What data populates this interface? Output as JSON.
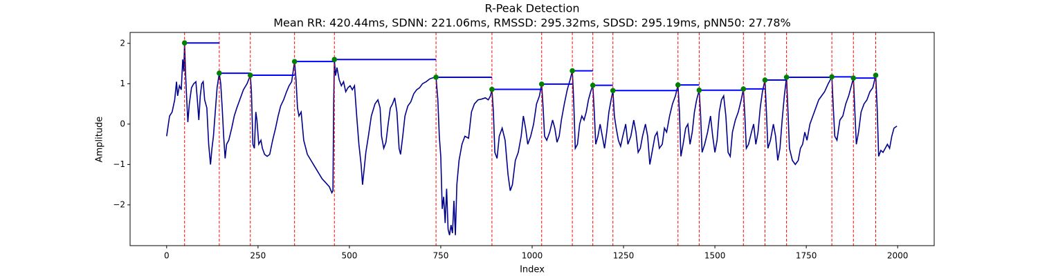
{
  "chart_data": {
    "type": "line",
    "title": "R-Peak Detection",
    "subtitle": "Mean RR: 420.44ms, SDNN: 221.06ms, RMSSD: 295.32ms, SDSD: 295.19ms, pNN50: 27.78%",
    "x_label": "Index",
    "y_label": "Amplitude",
    "xlim": [
      -100,
      2100
    ],
    "ylim": [
      -3.01,
      2.27
    ],
    "xticks": [
      0,
      250,
      500,
      750,
      1000,
      1250,
      1500,
      1750,
      2000
    ],
    "yticks": [
      {
        "value": -2,
        "label": "−2"
      },
      {
        "value": -1,
        "label": "−1"
      },
      0,
      1,
      2
    ],
    "signal": {
      "color": "#00008b",
      "x": [
        0,
        8,
        15,
        22,
        27,
        30,
        35,
        40,
        44,
        47,
        49,
        52,
        55,
        58,
        62,
        68,
        74,
        80,
        84,
        88,
        92,
        96,
        100,
        104,
        110,
        115,
        120,
        124,
        128,
        133,
        138,
        144,
        148,
        152,
        156,
        160,
        164,
        170,
        178,
        185,
        192,
        200,
        210,
        220,
        229,
        232,
        236,
        240,
        244,
        247,
        252,
        258,
        262,
        268,
        275,
        282,
        290,
        298,
        305,
        312,
        320,
        328,
        335,
        342,
        350,
        354,
        358,
        362,
        368,
        375,
        385,
        395,
        405,
        415,
        425,
        435,
        445,
        452,
        455,
        457,
        459,
        462,
        466,
        472,
        478,
        484,
        490,
        496,
        502,
        508,
        514,
        520,
        526,
        532,
        536,
        540,
        545,
        552,
        560,
        570,
        578,
        584,
        588,
        594,
        600,
        606,
        612,
        618,
        624,
        630,
        636,
        640,
        646,
        652,
        660,
        668,
        676,
        684,
        692,
        700,
        710,
        720,
        730,
        737,
        742,
        746,
        750,
        754,
        758,
        762,
        766,
        770,
        774,
        778,
        782,
        786,
        790,
        794,
        800,
        808,
        816,
        826,
        834,
        842,
        852,
        862,
        872,
        880,
        886,
        890,
        894,
        898,
        904,
        910,
        918,
        926,
        934,
        940,
        946,
        954,
        962,
        970,
        976,
        982,
        988,
        996,
        1004,
        1012,
        1020,
        1026,
        1030,
        1034,
        1040,
        1048,
        1056,
        1062,
        1068,
        1074,
        1080,
        1088,
        1096,
        1104,
        1110,
        1114,
        1118,
        1124,
        1130,
        1136,
        1142,
        1148,
        1154,
        1160,
        1166,
        1170,
        1174,
        1180,
        1186,
        1192,
        1198,
        1204,
        1210,
        1216,
        1221,
        1225,
        1230,
        1236,
        1242,
        1248,
        1256,
        1262,
        1270,
        1278,
        1284,
        1290,
        1296,
        1302,
        1310,
        1316,
        1322,
        1328,
        1336,
        1342,
        1348,
        1356,
        1362,
        1368,
        1376,
        1384,
        1392,
        1399,
        1403,
        1407,
        1413,
        1420,
        1426,
        1432,
        1438,
        1444,
        1450,
        1457,
        1461,
        1465,
        1472,
        1480,
        1488,
        1494,
        1500,
        1506,
        1512,
        1518,
        1524,
        1530,
        1536,
        1542,
        1548,
        1556,
        1564,
        1572,
        1578,
        1582,
        1586,
        1592,
        1600,
        1606,
        1612,
        1618,
        1624,
        1630,
        1637,
        1641,
        1645,
        1652,
        1660,
        1666,
        1672,
        1678,
        1684,
        1690,
        1696,
        1700,
        1704,
        1712,
        1720,
        1728,
        1734,
        1740,
        1746,
        1752,
        1760,
        1768,
        1776,
        1784,
        1792,
        1800,
        1810,
        1820,
        1824,
        1828,
        1834,
        1842,
        1850,
        1858,
        1866,
        1872,
        1879,
        1883,
        1887,
        1893,
        1900,
        1908,
        1916,
        1924,
        1932,
        1940,
        1944,
        1948,
        1954,
        1960,
        1966,
        1972,
        1978,
        1984,
        1990,
        1998
      ],
      "values": [
        -0.3,
        0.2,
        0.3,
        0.6,
        1.05,
        0.7,
        0.95,
        0.85,
        1.6,
        1.3,
        2.01,
        1.2,
        0.6,
        0.05,
        0.5,
        0.9,
        1.0,
        1.05,
        0.6,
        0.1,
        0.7,
        1.0,
        1.05,
        0.6,
        0.4,
        -0.5,
        -1.0,
        -0.6,
        -0.3,
        0.3,
        0.9,
        1.26,
        1.0,
        0.4,
        -0.3,
        -0.85,
        -0.5,
        -0.4,
        -0.1,
        0.2,
        0.4,
        0.6,
        0.85,
        1.0,
        1.21,
        0.8,
        -0.5,
        -0.6,
        0.3,
        0.1,
        -0.5,
        -0.4,
        -0.6,
        -0.75,
        -0.8,
        -0.75,
        -0.4,
        -0.1,
        0.2,
        0.45,
        0.6,
        0.8,
        0.95,
        1.05,
        1.55,
        1.1,
        0.4,
        0.2,
        0.3,
        -0.4,
        -0.75,
        -0.9,
        -1.05,
        -1.2,
        -1.35,
        -1.45,
        -1.55,
        -1.7,
        -1.65,
        0.5,
        1.6,
        1.2,
        1.4,
        1.1,
        0.95,
        1.05,
        0.8,
        0.9,
        0.95,
        0.85,
        0.95,
        0.2,
        -0.5,
        -1.0,
        -1.5,
        -1.15,
        -0.7,
        -0.3,
        0.2,
        0.5,
        0.6,
        0.4,
        -0.3,
        -0.6,
        -0.45,
        0,
        0.4,
        0.5,
        0.65,
        0.3,
        -0.6,
        -0.75,
        -0.3,
        0.2,
        0.45,
        0.55,
        0.75,
        0.85,
        0.9,
        1.0,
        1.05,
        1.12,
        1.15,
        1.16,
        0.6,
        -0.3,
        -0.8,
        -2.1,
        -1.8,
        -2.45,
        -1.6,
        -2.6,
        -2.75,
        -2.5,
        -2.7,
        -1.9,
        -2.75,
        -1.5,
        -0.9,
        -0.5,
        -0.3,
        -0.35,
        0.3,
        0.5,
        0.6,
        0.62,
        0.65,
        0.6,
        0.7,
        0.86,
        0.3,
        -0.7,
        -0.85,
        -0.3,
        -0.1,
        -0.4,
        -1.25,
        -1.65,
        -1.5,
        -0.9,
        -0.7,
        -0.3,
        0.2,
        -0.1,
        -0.5,
        -0.3,
        0,
        0.5,
        0.7,
        0.99,
        0.4,
        -0.3,
        -0.4,
        -0.2,
        0.1,
        -0.1,
        -0.45,
        -0.3,
        0.1,
        0.5,
        0.85,
        1.1,
        1.32,
        0.5,
        -0.6,
        -0.5,
        0,
        0.2,
        0.1,
        0.3,
        0.6,
        0.8,
        0.96,
        0.3,
        -0.5,
        -0.3,
        0,
        -0.3,
        -0.6,
        -0.2,
        0.3,
        0.6,
        0.83,
        0.2,
        -0.1,
        -0.4,
        -0.55,
        -0.3,
        0,
        -0.5,
        -0.3,
        0.1,
        -0.2,
        -0.7,
        -0.6,
        -0.3,
        0,
        -0.3,
        -1.0,
        -0.7,
        -0.3,
        -0.2,
        -0.6,
        -0.5,
        -0.1,
        -0.2,
        0.2,
        0.5,
        0.7,
        0.97,
        0.3,
        -0.8,
        -0.5,
        -0.1,
        0,
        -0.5,
        -0.2,
        0.3,
        0.6,
        0.84,
        0.2,
        -0.7,
        -0.5,
        -0.2,
        0.2,
        -0.3,
        -0.7,
        -0.4,
        0.3,
        0.6,
        0.7,
        0.2,
        -0.7,
        -0.8,
        -0.2,
        0.1,
        0.3,
        0.6,
        0.87,
        0.2,
        -0.6,
        -0.5,
        -0.2,
        0,
        -0.5,
        -0.2,
        0.4,
        0.8,
        1.09,
        0.3,
        -0.6,
        -0.4,
        0,
        -0.3,
        -0.9,
        -0.6,
        0.1,
        0.7,
        1.16,
        0.3,
        -0.6,
        -0.9,
        -1.0,
        -0.9,
        -0.6,
        -0.5,
        -0.2,
        -0.4,
        0,
        0.2,
        0.4,
        0.6,
        0.7,
        0.8,
        1.0,
        1.17,
        0.4,
        -0.3,
        -0.4,
        0.1,
        0.2,
        0.5,
        0.7,
        0.9,
        1.14,
        0.3,
        -0.5,
        -0.2,
        0.3,
        0.5,
        0.6,
        0.8,
        0.9,
        1.21,
        0.4,
        -0.8,
        -0.65,
        -0.7,
        -0.6,
        -0.5,
        -0.6,
        -0.3,
        -0.1,
        -0.05
      ]
    },
    "peaks": {
      "color": "#008000",
      "line_color": "#ff0000",
      "interval_color": "#0000ff",
      "x": [
        49,
        144,
        229,
        350,
        459,
        737,
        890,
        1026,
        1110,
        1166,
        1221,
        1399,
        1457,
        1578,
        1637,
        1696,
        1820,
        1879,
        1940
      ],
      "values": [
        2.01,
        1.26,
        1.21,
        1.55,
        1.6,
        1.16,
        0.86,
        0.99,
        1.32,
        0.96,
        0.83,
        0.97,
        0.84,
        0.87,
        1.09,
        1.16,
        1.17,
        1.14,
        1.21
      ]
    }
  }
}
